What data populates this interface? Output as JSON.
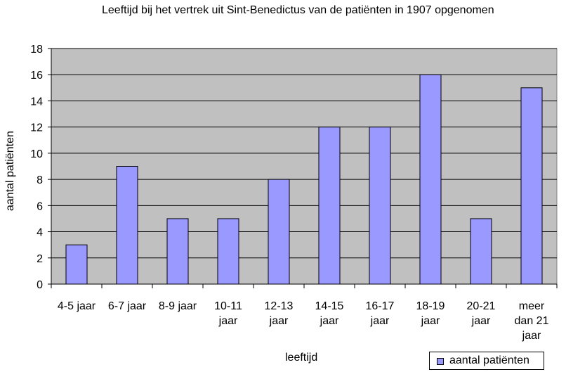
{
  "chart_data": {
    "type": "bar",
    "title": "Leeftijd bij het vertrek uit Sint-Benedictus van de patiënten in 1907 opgenomen",
    "xlabel": "leeftijd",
    "ylabel": "aantal patiënten",
    "categories": [
      "4-5 jaar",
      "6-7 jaar",
      "8-9 jaar",
      "10-11 jaar",
      "12-13 jaar",
      "14-15 jaar",
      "16-17 jaar",
      "18-19 jaar",
      "20-21 jaar",
      "meer dan 21 jaar"
    ],
    "category_lines": [
      [
        "4-5 jaar"
      ],
      [
        "6-7 jaar"
      ],
      [
        "8-9 jaar"
      ],
      [
        "10-11",
        "jaar"
      ],
      [
        "12-13",
        "jaar"
      ],
      [
        "14-15",
        "jaar"
      ],
      [
        "16-17",
        "jaar"
      ],
      [
        "18-19",
        "jaar"
      ],
      [
        "20-21",
        "jaar"
      ],
      [
        "meer",
        "dan 21",
        "jaar"
      ]
    ],
    "series": [
      {
        "name": "aantal patiënten",
        "values": [
          3,
          9,
          5,
          5,
          8,
          12,
          12,
          16,
          5,
          15
        ],
        "color": "#9999ff"
      }
    ],
    "ylim": [
      0,
      18
    ],
    "yticks": [
      0,
      2,
      4,
      6,
      8,
      10,
      12,
      14,
      16,
      18
    ],
    "grid": true,
    "plot_background": "#c0c0c0",
    "legend_position": "bottom-right"
  }
}
